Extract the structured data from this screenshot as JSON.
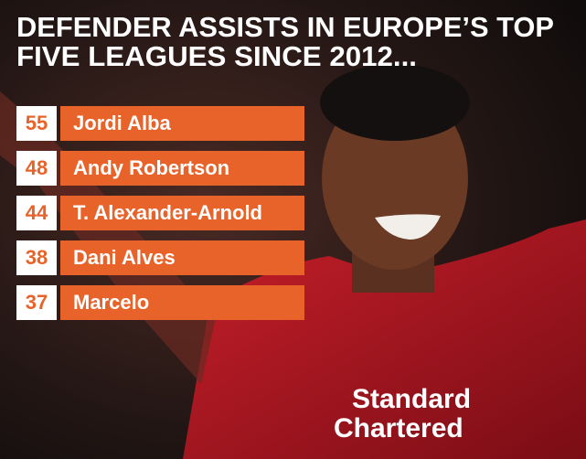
{
  "title": [
    "DEFENDER ASSISTS IN EUROPE’S TOP",
    "FIVE LEAGUES SINCE 2012..."
  ],
  "rows": [
    {
      "value": 55,
      "name": "Jordi Alba"
    },
    {
      "value": 48,
      "name": "Andy Robertson"
    },
    {
      "value": 44,
      "name": "T. Alexander-Arnold"
    },
    {
      "value": 38,
      "name": "Dani Alves"
    },
    {
      "value": 37,
      "name": "Marcelo"
    }
  ],
  "photo": {
    "sponsor": [
      "Standard",
      "Chartered"
    ]
  }
}
